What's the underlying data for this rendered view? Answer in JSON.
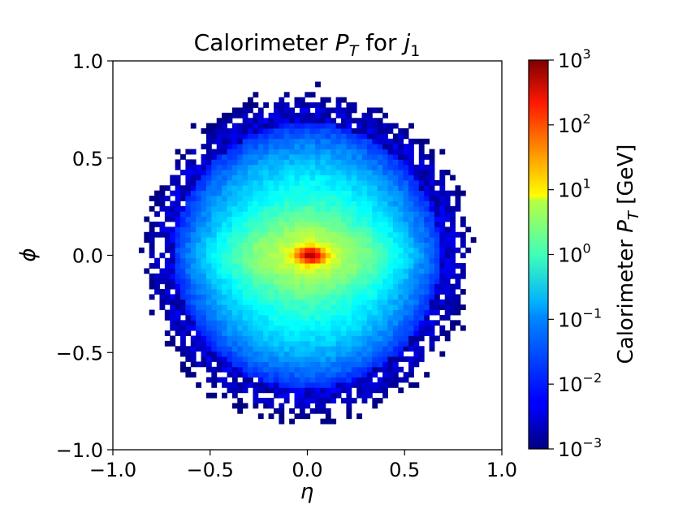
{
  "chart_data": {
    "type": "heatmap",
    "title": {
      "prefix": "Calorimeter ",
      "var": "P",
      "sub": "T",
      "mid": " for ",
      "var2": "j",
      "sub2": "1"
    },
    "xlabel": "η",
    "ylabel": "ϕ",
    "xlim": [
      -1.0,
      1.0
    ],
    "ylim": [
      -1.0,
      1.0
    ],
    "x_ticks": [
      "−1.0",
      "−0.5",
      "0.0",
      "0.5",
      "1.0"
    ],
    "x_tick_values": [
      -1.0,
      -0.5,
      0.0,
      0.5,
      1.0
    ],
    "y_ticks": [
      "−1.0",
      "−0.5",
      "0.0",
      "0.5",
      "1.0"
    ],
    "y_tick_values": [
      -1.0,
      -0.5,
      0.0,
      0.5,
      1.0
    ],
    "bins": 75,
    "support_radius": 0.83,
    "peak": {
      "eta": 0.02,
      "phi": 0.0,
      "value": 30
    },
    "value_scale": "log",
    "colorbar": {
      "label_prefix": "Calorimeter ",
      "label_var": "P",
      "label_sub": "T",
      "label_suffix": " [GeV]",
      "range": [
        0.001,
        1000
      ],
      "ticks": [
        {
          "base": "10",
          "exp": "3"
        },
        {
          "base": "10",
          "exp": "2"
        },
        {
          "base": "10",
          "exp": "1"
        },
        {
          "base": "10",
          "exp": "0"
        },
        {
          "base": "10",
          "exp": "−1"
        },
        {
          "base": "10",
          "exp": "−2"
        },
        {
          "base": "10",
          "exp": "−3"
        }
      ],
      "tick_log_values": [
        3,
        2,
        1,
        0,
        -1,
        -2,
        -3
      ],
      "colormap": "jet"
    },
    "grid": false
  }
}
